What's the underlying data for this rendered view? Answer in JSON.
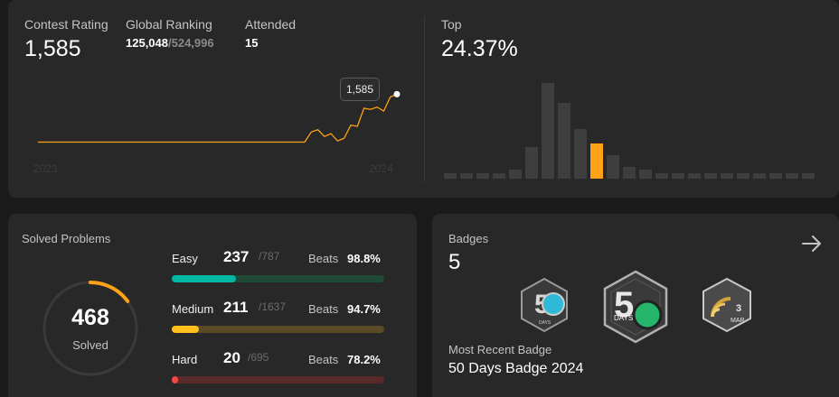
{
  "contest": {
    "rating_label": "Contest Rating",
    "rating_value": "1,585",
    "ranking_label": "Global Ranking",
    "ranking_value": "125,048",
    "ranking_total": "/524,996",
    "attended_label": "Attended",
    "attended_value": "15",
    "tooltip_value": "1,585",
    "year_start": "2023",
    "year_end": "2024",
    "line_color": "#ffa116",
    "rating_history": [
      1500,
      1500,
      1500,
      1500,
      1500,
      1500,
      1500,
      1500,
      1500,
      1500,
      1500,
      1500,
      1500,
      1500,
      1500,
      1500,
      1500,
      1500,
      1500,
      1500,
      1500,
      1500,
      1500,
      1500,
      1500,
      1500,
      1500,
      1500,
      1500,
      1500,
      1500,
      1500,
      1500,
      1500,
      1500,
      1500,
      1500,
      1500,
      1500,
      1500,
      1500,
      1500,
      1500,
      1500,
      1500,
      1500,
      1500,
      1500,
      1500,
      1500,
      1500,
      1500,
      1500,
      1500,
      1500,
      1500,
      1500,
      1500,
      1500,
      1500,
      1500,
      1500,
      1500,
      1500,
      1500,
      1500,
      1500,
      1500,
      1500,
      1500,
      1500,
      1500,
      1500,
      1500,
      1500,
      1500,
      1500,
      1500,
      1500,
      1500,
      1500,
      1500,
      1500,
      1500,
      1500,
      1500,
      1500,
      1500,
      1500,
      1500,
      1500,
      1500,
      1500,
      1500,
      1500,
      1500,
      1500,
      1500,
      1500,
      1500,
      1500,
      1500,
      1500,
      1500,
      1500,
      1500,
      1500,
      1500,
      1500,
      1500,
      1500,
      1500,
      1500,
      1500,
      1500,
      1500,
      1500,
      1500,
      1500,
      1500,
      1500,
      1500,
      1500,
      1500,
      1500,
      1500,
      1500,
      1500,
      1500,
      1500,
      1500,
      1500,
      1500,
      1500,
      1500,
      1500,
      1500,
      1500,
      1500,
      1500,
      1500,
      1500,
      1500,
      1500,
      1500,
      1500,
      1500,
      1500,
      1500,
      1500,
      1500,
      1500,
      1500,
      1500,
      1500,
      1500,
      1500,
      1500,
      1500,
      1500,
      1500,
      1500,
      1500,
      1500,
      1500,
      1500,
      1500,
      1500,
      1500,
      1500,
      1500,
      1500,
      1500,
      1500,
      1500,
      1500,
      1500,
      1500,
      1500,
      1500,
      1500,
      1500,
      1500,
      1500,
      1500,
      1500,
      1500,
      1500,
      1500,
      1500,
      1500,
      1500,
      1500,
      1500,
      1500,
      1500,
      1500,
      1500,
      1500,
      1500,
      1500,
      1500,
      1500,
      1500,
      1500,
      1500,
      1500,
      1500,
      1500,
      1500,
      1500,
      1500,
      1500,
      1500,
      1500,
      1500,
      1500,
      1500,
      1500,
      1500,
      1500,
      1500,
      1500,
      1500,
      1500,
      1500,
      1500,
      1500,
      1500,
      1500,
      1500,
      1500,
      1500,
      1500,
      1500,
      1500,
      1500,
      1500,
      1500,
      1500,
      1500,
      1500,
      1500,
      1500,
      1500,
      1500,
      1500,
      1500,
      1500,
      1500,
      1500,
      1500,
      1500,
      1500,
      1500,
      1500,
      1500,
      1500,
      1500,
      1500,
      1500,
      1500,
      1500,
      1500,
      1500,
      1500,
      1500,
      1500,
      1500,
      1500,
      1500,
      1500,
      1500,
      1500,
      1500,
      1500,
      1500,
      1500,
      1500,
      1500,
      1500,
      1500,
      1500,
      1500,
      1500,
      1500,
      1500,
      1500,
      1500,
      1500,
      1500,
      1500,
      1500,
      1500,
      1500,
      1500,
      1500,
      1500,
      1500,
      1500,
      1500,
      1500,
      1500,
      1500,
      1500,
      1500
    ],
    "rating_tail": [
      1500,
      1518,
      1522,
      1510,
      1515,
      1502,
      1507,
      1530,
      1528,
      1560,
      1558,
      1562,
      1555,
      1580,
      1585
    ]
  },
  "top": {
    "label": "Top",
    "value": "24.37%",
    "hist_values": [
      2,
      2,
      2,
      2,
      3,
      11,
      33,
      26,
      17,
      12,
      8,
      4,
      3,
      2,
      2,
      2,
      2,
      2,
      2,
      2,
      2,
      2,
      2
    ],
    "highlight_index": 9,
    "highlight_color": "#ffa116"
  },
  "solved": {
    "title": "Solved Problems",
    "count": "468",
    "count_label": "Solved",
    "fraction": 0.149,
    "ring_color": "#ffa116",
    "rows": [
      {
        "name": "Easy",
        "solved": "237",
        "total": "/787",
        "beats_label": "Beats",
        "beats": "98.8%",
        "fraction": 0.301,
        "color": "#00b8a3",
        "track": "#1f4a37"
      },
      {
        "name": "Medium",
        "solved": "211",
        "total": "/1637",
        "beats_label": "Beats",
        "beats": "94.7%",
        "fraction": 0.129,
        "color": "#ffc01e",
        "track": "#5a4a25"
      },
      {
        "name": "Hard",
        "solved": "20",
        "total": "/695",
        "beats_label": "Beats",
        "beats": "78.2%",
        "fraction": 0.029,
        "color": "#ef4743",
        "track": "#5a2a2a"
      }
    ]
  },
  "badges": {
    "title": "Badges",
    "count": "5",
    "recent_label": "Most Recent Badge",
    "recent_name": "50 Days Badge 2024",
    "badge1_text": "DAYS",
    "badge2_text": "DAYS",
    "badge3_month": "MAR",
    "badge3_num": "3"
  }
}
